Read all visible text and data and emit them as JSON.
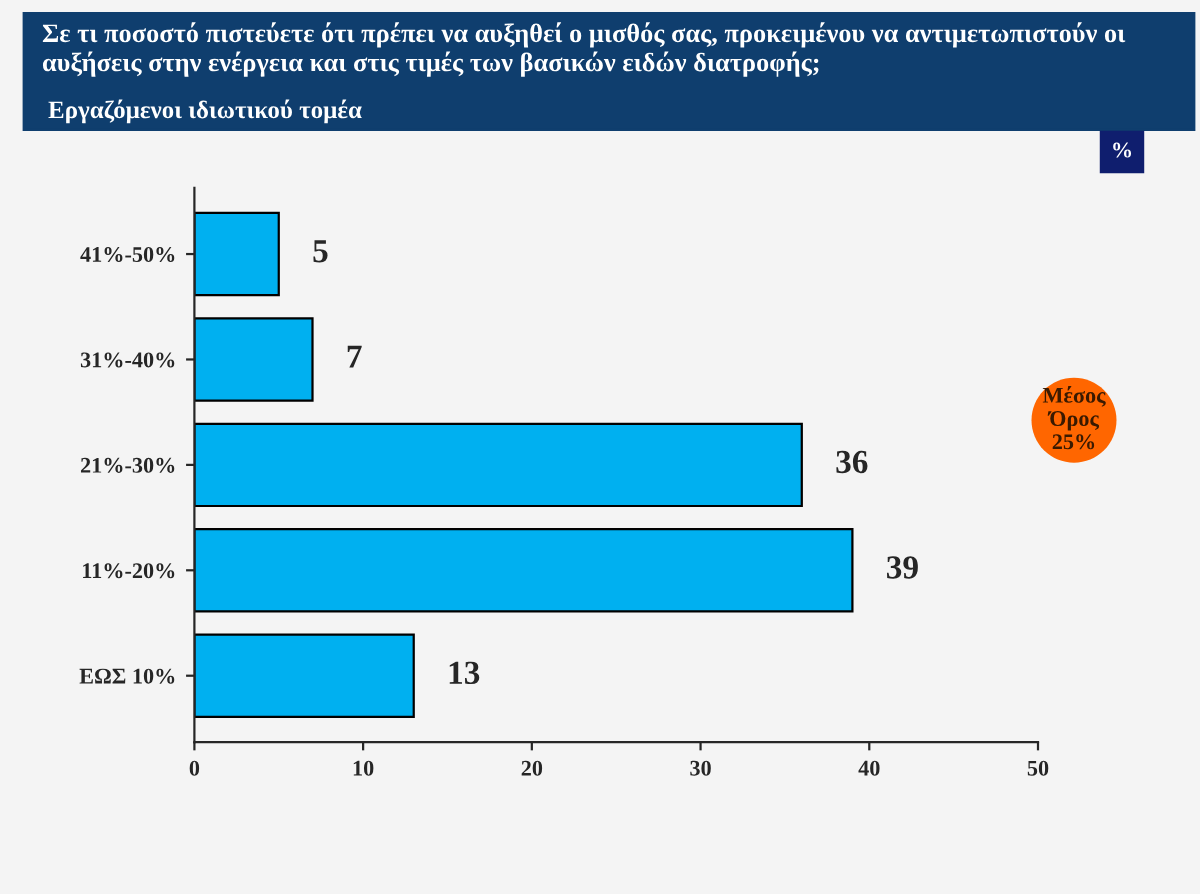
{
  "chart_data": {
    "type": "bar",
    "orientation": "horizontal",
    "title": "Σε τι ποσοστό πιστεύετε ότι πρέπει να αυξηθεί ο μισθός σας, προκειμένου να αντιμετωπιστούν οι αυξήσεις στην ενέργεια και στις τιμές των βασικών ειδών διατροφής;",
    "subtitle": "Εργαζόμενοι ιδιωτικού τομέα",
    "categories": [
      "41%-50%",
      "31%-40%",
      "21%-30%",
      "11%-20%",
      "ΕΩΣ 10%"
    ],
    "values": [
      5,
      7,
      36,
      39,
      13
    ],
    "color": "#00b0f0",
    "data_labels": true,
    "xlim": [
      0,
      50
    ],
    "xticks": [
      0,
      10,
      20,
      30,
      40,
      50
    ],
    "grid": false,
    "annotations": [
      "%",
      "Μέσος\nΌρος\n25%"
    ]
  }
}
